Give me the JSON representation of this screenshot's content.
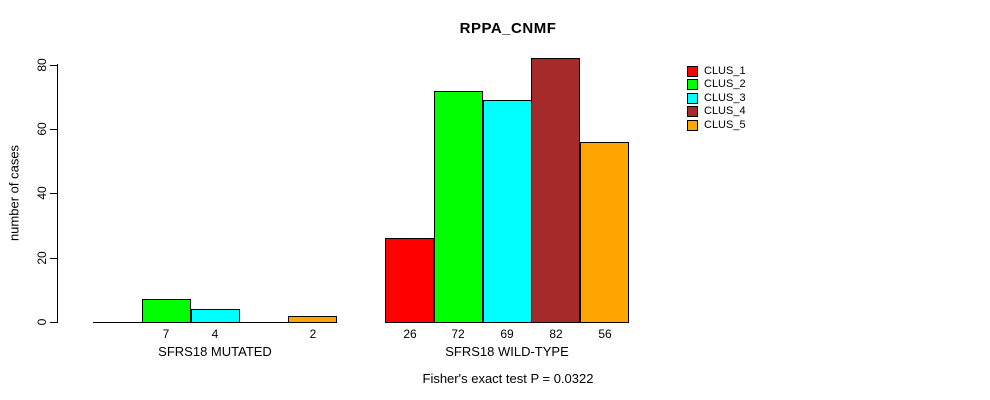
{
  "title": "RPPA_CNMF",
  "subtitle": "Fisher's exact test P = 0.0322",
  "ylabel": "number of cases",
  "chart_data": {
    "type": "bar",
    "title": "RPPA_CNMF",
    "xlabel": "",
    "ylabel": "number of cases",
    "ylim": [
      0,
      82
    ],
    "yticks": [
      0,
      20,
      40,
      60,
      80
    ],
    "grid": false,
    "legend_position": "right",
    "series": [
      {
        "name": "CLUS_1",
        "color": "#FF0000"
      },
      {
        "name": "CLUS_2",
        "color": "#00FF00"
      },
      {
        "name": "CLUS_3",
        "color": "#00FFFF"
      },
      {
        "name": "CLUS_4",
        "color": "#A52A2A"
      },
      {
        "name": "CLUS_5",
        "color": "#FFA500"
      }
    ],
    "groups": [
      {
        "label": "SFRS18 MUTATED",
        "values": [
          0,
          7,
          4,
          0,
          2
        ],
        "bar_labels": [
          "",
          "7",
          "4",
          "",
          "2"
        ]
      },
      {
        "label": "SFRS18 WILD-TYPE",
        "values": [
          26,
          72,
          69,
          82,
          56
        ],
        "bar_labels": [
          "26",
          "72",
          "69",
          "82",
          "56"
        ]
      }
    ],
    "annotation": "Fisher's exact test P = 0.0322"
  }
}
